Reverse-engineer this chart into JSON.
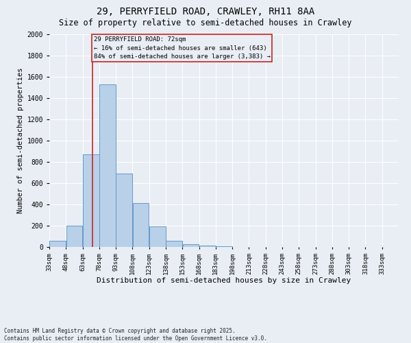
{
  "title_line1": "29, PERRYFIELD ROAD, CRAWLEY, RH11 8AA",
  "title_line2": "Size of property relative to semi-detached houses in Crawley",
  "bar_edges": [
    33,
    48,
    63,
    78,
    93,
    108,
    123,
    138,
    153,
    168,
    183,
    198,
    213,
    228,
    243,
    258,
    273,
    288,
    303,
    318,
    333
  ],
  "bar_heights": [
    60,
    200,
    870,
    1530,
    690,
    415,
    195,
    55,
    25,
    10,
    5,
    0,
    0,
    0,
    0,
    0,
    0,
    0,
    0,
    0
  ],
  "bar_color": "#b8d0e8",
  "bar_edgecolor": "#6699cc",
  "xlabel": "Distribution of semi-detached houses by size in Crawley",
  "ylabel": "Number of semi-detached properties",
  "ylim": [
    0,
    2000
  ],
  "yticks": [
    0,
    200,
    400,
    600,
    800,
    1000,
    1200,
    1400,
    1600,
    1800,
    2000
  ],
  "property_size": 72,
  "annotation_line1": "29 PERRYFIELD ROAD: 72sqm",
  "annotation_line2": "← 16% of semi-detached houses are smaller (643)",
  "annotation_line3": "84% of semi-detached houses are larger (3,383) →",
  "vline_color": "#cc2222",
  "box_edgecolor": "#cc2222",
  "footer_line1": "Contains HM Land Registry data © Crown copyright and database right 2025.",
  "footer_line2": "Contains public sector information licensed under the Open Government Licence v3.0.",
  "bg_color": "#e8eef4",
  "grid_color": "#ffffff",
  "tick_labels": [
    "33sqm",
    "48sqm",
    "63sqm",
    "78sqm",
    "93sqm",
    "108sqm",
    "123sqm",
    "138sqm",
    "153sqm",
    "168sqm",
    "183sqm",
    "198sqm",
    "213sqm",
    "228sqm",
    "243sqm",
    "258sqm",
    "273sqm",
    "288sqm",
    "303sqm",
    "318sqm",
    "333sqm"
  ],
  "title_fontsize": 10,
  "subtitle_fontsize": 8.5,
  "ylabel_fontsize": 7.5,
  "xlabel_fontsize": 8,
  "tick_fontsize": 6.5,
  "annot_fontsize": 6.5,
  "footer_fontsize": 5.5
}
